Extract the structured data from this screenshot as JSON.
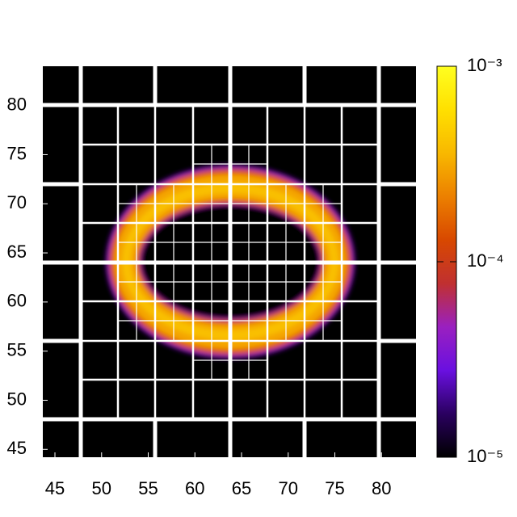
{
  "chart_data": {
    "type": "heatmap",
    "xlim": [
      43.7,
      83.7
    ],
    "xticks": [
      45,
      50,
      55,
      60,
      65,
      70,
      75,
      80
    ],
    "ylim": [
      44.2,
      84
    ],
    "yticks": [
      45,
      50,
      55,
      60,
      65,
      70,
      75,
      80
    ],
    "zlim": [
      1e-05,
      0.001
    ],
    "zscale": "log",
    "zticks": [
      {
        "value": 1e-05,
        "label": "10⁻⁵"
      },
      {
        "value": 0.0001,
        "label": "10⁻⁴"
      },
      {
        "value": 0.001,
        "label": "10⁻³"
      }
    ],
    "colorscale": [
      "#000000",
      "#2a0060",
      "#6a10e0",
      "#9a20c0",
      "#c03030",
      "#d84800",
      "#ec8000",
      "#f8b800",
      "#ffe000",
      "#ffff20"
    ],
    "center": [
      63.8,
      64.1
    ],
    "levels": [
      {
        "rx": 13.4,
        "ry": 9.9,
        "value": 2e-05
      },
      {
        "rx": 13.2,
        "ry": 9.7,
        "value": 5e-05
      },
      {
        "rx": 12.9,
        "ry": 9.4,
        "value": 0.00015
      },
      {
        "rx": 12.4,
        "ry": 8.9,
        "value": 0.0003
      },
      {
        "rx": 11.6,
        "ry": 8.0,
        "value": 0.0004
      },
      {
        "rx": 10.7,
        "ry": 7.0,
        "value": 0.0003
      },
      {
        "rx": 10.1,
        "ry": 6.4,
        "value": 0.00015
      },
      {
        "rx": 9.8,
        "ry": 6.0,
        "value": 5e-05
      },
      {
        "rx": 9.6,
        "ry": 5.8,
        "value": 1e-05
      }
    ]
  }
}
